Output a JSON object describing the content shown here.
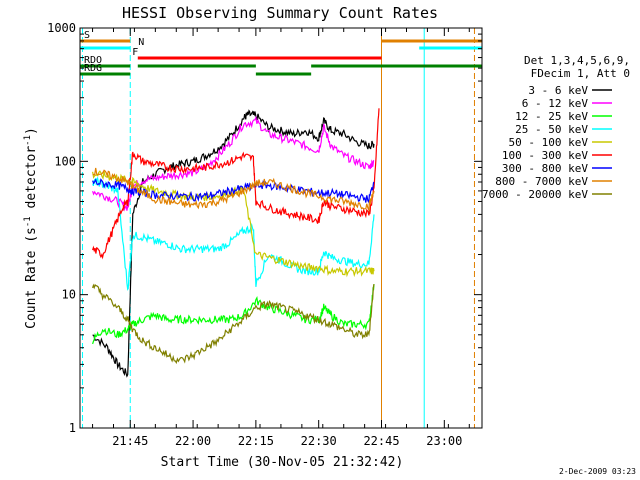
{
  "chart_data": {
    "type": "line",
    "title": "HESSI Observing Summary Count Rates",
    "xlabel": "Start Time (30-Nov-05 21:32:42)",
    "ylabel_main": "Count Rate (s",
    "ylabel_sup1": "-1",
    "ylabel_mid": " detector",
    "ylabel_sup2": "-1",
    "ylabel_end": ")",
    "yscale": "log",
    "ylim": [
      1,
      1000
    ],
    "xlim_minutes": [
      21.55,
      23.15
    ],
    "x_ticks": [
      {
        "label": "21:45",
        "t": 21.75
      },
      {
        "label": "22:00",
        "t": 22.0
      },
      {
        "label": "22:15",
        "t": 22.25
      },
      {
        "label": "22:30",
        "t": 22.5
      },
      {
        "label": "22:45",
        "t": 22.75
      },
      {
        "label": "23:00",
        "t": 23.0
      }
    ],
    "y_ticks": [
      {
        "label": "1",
        "v": 1
      },
      {
        "label": "10",
        "v": 10
      },
      {
        "label": "100",
        "v": 100
      },
      {
        "label": "1000",
        "v": 1000
      }
    ],
    "legend_header": [
      "Det 1,3,4,5,6,9,",
      "FDecim 1, Att 0"
    ],
    "stamp": "2-Dec-2009 03:23",
    "series": [
      {
        "name": "3 - 6 keV",
        "color": "#000000",
        "x": [
          21.6,
          21.66,
          21.7,
          21.74,
          21.76,
          21.8,
          21.85,
          21.9,
          21.95,
          22.0,
          22.05,
          22.1,
          22.15,
          22.2,
          22.22,
          22.25,
          22.3,
          22.35,
          22.4,
          22.45,
          22.5,
          22.52,
          22.55,
          22.6,
          22.65,
          22.7,
          22.72
        ],
        "y": [
          5,
          4,
          3,
          2.5,
          40,
          70,
          80,
          90,
          95,
          100,
          110,
          125,
          155,
          210,
          225,
          220,
          180,
          170,
          160,
          170,
          150,
          200,
          170,
          160,
          140,
          130,
          135
        ]
      },
      {
        "name": "6 - 12 keV",
        "color": "#ff00ff",
        "x": [
          21.6,
          21.65,
          21.7,
          21.74,
          21.76,
          21.8,
          21.85,
          21.9,
          21.95,
          22.0,
          22.05,
          22.1,
          22.15,
          22.2,
          22.25,
          22.3,
          22.35,
          22.4,
          22.45,
          22.5,
          22.52,
          22.55,
          22.6,
          22.65,
          22.7,
          22.72
        ],
        "y": [
          60,
          55,
          50,
          45,
          65,
          72,
          75,
          78,
          80,
          82,
          90,
          110,
          140,
          190,
          200,
          160,
          150,
          140,
          130,
          120,
          180,
          130,
          110,
          100,
          90,
          100
        ]
      },
      {
        "name": "12 - 25 keV",
        "color": "#00ff00",
        "x": [
          21.6,
          21.64,
          21.7,
          21.74,
          21.76,
          21.8,
          21.85,
          21.9,
          21.95,
          22.0,
          22.05,
          22.1,
          22.15,
          22.2,
          22.25,
          22.3,
          22.35,
          22.4,
          22.45,
          22.5,
          22.52,
          22.55,
          22.6,
          22.65,
          22.7,
          22.72
        ],
        "y": [
          4.5,
          5.5,
          5,
          5.5,
          6,
          6.5,
          7,
          6.5,
          6.5,
          6.5,
          6.5,
          6.5,
          6.5,
          7,
          9,
          8,
          7.5,
          7,
          6.5,
          6.5,
          8,
          7,
          6,
          6,
          6,
          12
        ]
      },
      {
        "name": "25 - 50 keV",
        "color": "#00ffff",
        "x": [
          21.6,
          21.62,
          21.66,
          21.7,
          21.74,
          21.76,
          21.8,
          21.85,
          21.9,
          21.95,
          22.0,
          22.05,
          22.1,
          22.15,
          22.2,
          22.24,
          22.25,
          22.3,
          22.35,
          22.4,
          22.45,
          22.5,
          22.52,
          22.55,
          22.6,
          22.65,
          22.7,
          22.72
        ],
        "y": [
          70,
          70,
          65,
          60,
          11,
          28,
          27,
          25,
          24,
          22,
          22,
          22,
          22,
          25,
          30,
          32,
          12,
          20,
          18,
          16,
          15,
          15,
          21,
          19,
          18,
          17,
          17,
          40
        ]
      },
      {
        "name": "50 - 100 keV",
        "color": "#c8c800",
        "x": [
          21.6,
          21.65,
          21.7,
          21.74,
          21.76,
          21.8,
          21.85,
          21.9,
          21.95,
          22.0,
          22.05,
          22.1,
          22.15,
          22.2,
          22.25,
          22.3,
          22.35,
          22.4,
          22.45,
          22.5,
          22.55,
          22.6,
          22.65,
          22.7,
          22.72
        ],
        "y": [
          80,
          78,
          75,
          72,
          70,
          65,
          60,
          58,
          55,
          54,
          54,
          55,
          58,
          62,
          20,
          19,
          18,
          17,
          16,
          16,
          15,
          15,
          15,
          15,
          15
        ]
      },
      {
        "name": "100 - 300 keV",
        "color": "#ff0000",
        "x": [
          21.6,
          21.64,
          21.68,
          21.72,
          21.74,
          21.76,
          21.8,
          21.85,
          21.9,
          21.95,
          22.0,
          22.05,
          22.1,
          22.15,
          22.2,
          22.24,
          22.25,
          22.3,
          22.35,
          22.4,
          22.45,
          22.5,
          22.52,
          22.55,
          22.6,
          22.65,
          22.7,
          22.72,
          22.74
        ],
        "y": [
          22,
          20,
          30,
          45,
          50,
          115,
          100,
          95,
          90,
          88,
          88,
          90,
          95,
          100,
          110,
          105,
          50,
          45,
          42,
          40,
          38,
          36,
          50,
          46,
          44,
          42,
          40,
          60,
          250
        ]
      },
      {
        "name": "300 - 800 keV",
        "color": "#0000ff",
        "x": [
          21.6,
          21.65,
          21.7,
          21.74,
          21.76,
          21.8,
          21.85,
          21.9,
          21.95,
          22.0,
          22.05,
          22.1,
          22.15,
          22.2,
          22.25,
          22.3,
          22.35,
          22.4,
          22.45,
          22.5,
          22.55,
          22.6,
          22.65,
          22.7,
          22.72
        ],
        "y": [
          70,
          68,
          66,
          62,
          60,
          58,
          56,
          55,
          55,
          54,
          55,
          57,
          60,
          63,
          66,
          66,
          64,
          62,
          60,
          58,
          58,
          56,
          54,
          52,
          70
        ]
      },
      {
        "name": "800 - 7000 keV",
        "color": "#e08000",
        "x": [
          21.6,
          21.65,
          21.7,
          21.74,
          21.76,
          21.8,
          21.85,
          21.9,
          21.95,
          22.0,
          22.05,
          22.1,
          22.15,
          22.2,
          22.25,
          22.3,
          22.35,
          22.4,
          22.45,
          22.5,
          22.55,
          22.6,
          22.65,
          22.7,
          22.72
        ],
        "y": [
          85,
          80,
          75,
          70,
          65,
          58,
          52,
          50,
          48,
          47,
          48,
          50,
          54,
          60,
          68,
          70,
          66,
          62,
          58,
          55,
          52,
          50,
          48,
          46,
          60
        ]
      },
      {
        "name": "7000 - 20000 keV",
        "color": "#808000",
        "x": [
          21.6,
          21.64,
          21.7,
          21.74,
          21.76,
          21.8,
          21.85,
          21.9,
          21.95,
          22.0,
          22.05,
          22.1,
          22.15,
          22.2,
          22.25,
          22.3,
          22.35,
          22.4,
          22.45,
          22.5,
          22.55,
          22.6,
          22.65,
          22.7,
          22.72
        ],
        "y": [
          12,
          10,
          8,
          6.5,
          5.5,
          4.5,
          4,
          3.5,
          3.2,
          3.5,
          4,
          4.5,
          5.5,
          6.5,
          8,
          8.5,
          8,
          7.5,
          7,
          6.5,
          6,
          5.5,
          5,
          5,
          12
        ]
      }
    ],
    "flags": [
      {
        "label": "S",
        "color": "#e08000",
        "y_label": 1,
        "segments": [
          [
            21.55,
            21.75
          ]
        ]
      },
      {
        "label": "N",
        "color": "#00ffff",
        "y_label": 2,
        "segments": [
          [
            21.55,
            21.75
          ],
          [
            22.9,
            23.15
          ]
        ]
      },
      {
        "label": "F",
        "color": "#ff0000",
        "y_label": 3,
        "segments": [
          [
            21.78,
            22.75
          ]
        ]
      },
      {
        "label": "RDO",
        "color": "#008000",
        "y_label": 4,
        "segments": [
          [
            21.55,
            21.75
          ],
          [
            21.78,
            22.25
          ],
          [
            22.47,
            23.15
          ]
        ]
      },
      {
        "label": "RDG",
        "color": "#008000",
        "y_label": 5,
        "segments": [
          [
            21.55,
            21.75
          ],
          [
            22.25,
            22.47
          ]
        ]
      },
      {
        "label": "",
        "color": "#e08000",
        "y_label": 0,
        "segments": [
          [
            22.75,
            23.15
          ]
        ]
      }
    ],
    "vlines": [
      {
        "t": 21.56,
        "color": "#00ffff",
        "dash": true
      },
      {
        "t": 21.75,
        "color": "#00ffff",
        "dash": true
      },
      {
        "t": 22.75,
        "color": "#e08000",
        "dash": false
      },
      {
        "t": 22.92,
        "color": "#00ffff",
        "dash": false
      },
      {
        "t": 23.12,
        "color": "#e08000",
        "dash": true
      }
    ]
  }
}
